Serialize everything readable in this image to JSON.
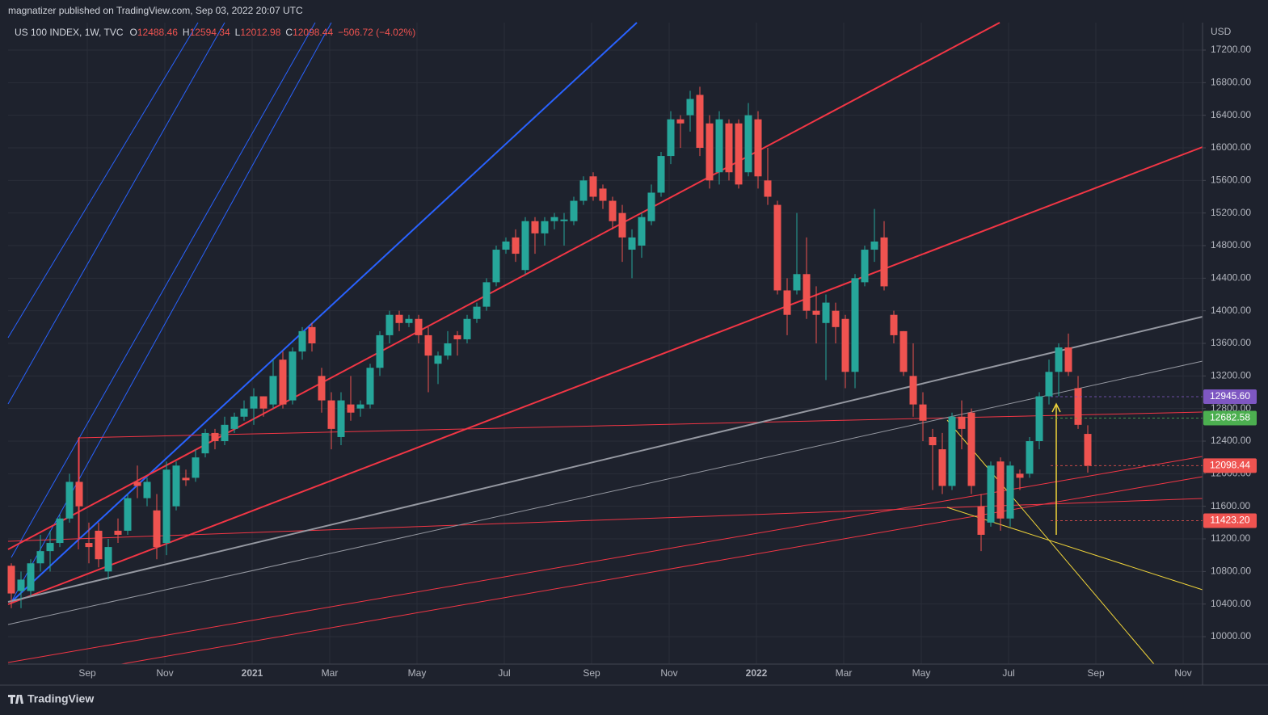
{
  "header": "magnatizer published on TradingView.com, Sep 03, 2022 20:07 UTC",
  "footer": "TradingView",
  "chart_data": {
    "type": "candlestick",
    "title": "US 100 INDEX, 1W, TVC",
    "ohlc_legend": [
      {
        "label": "O",
        "value": 12488.46
      },
      {
        "label": "H",
        "value": 12594.34
      },
      {
        "label": "L",
        "value": 12012.98
      },
      {
        "label": "C",
        "value": 12098.44
      }
    ],
    "change": "−506.72 (−4.02%)",
    "y_axis_label": "USD",
    "up_color": "#26a69a",
    "down_color": "#ef5350",
    "categories": [
      null,
      null,
      null,
      null,
      null,
      null,
      null,
      null,
      "Sep",
      null,
      null,
      null,
      null,
      null,
      null,
      null,
      "Nov",
      null,
      null,
      null,
      null,
      null,
      null,
      null,
      null,
      "2021",
      null,
      null,
      null,
      null,
      null,
      null,
      null,
      "Mar",
      null,
      null,
      null,
      null,
      null,
      null,
      null,
      null,
      "May",
      null,
      null,
      null,
      null,
      null,
      null,
      null,
      null,
      "Jul",
      null,
      null,
      null,
      null,
      null,
      null,
      null,
      null,
      "Sep",
      null,
      null,
      null,
      null,
      null,
      null,
      null,
      "Nov",
      null,
      null,
      null,
      null,
      null,
      null,
      null,
      null,
      "2022",
      null,
      null,
      null,
      null,
      null,
      null,
      null,
      null,
      "Mar",
      null,
      null,
      null,
      null,
      null,
      null,
      null,
      "May",
      null,
      null,
      null,
      null,
      null,
      null,
      null,
      null,
      "Jul",
      null,
      null,
      null,
      null,
      null,
      null,
      null,
      null,
      "Sep",
      null,
      null,
      null,
      null,
      null,
      null,
      null,
      null,
      "Nov"
    ],
    "open": [
      10870,
      10560,
      10560,
      10900,
      11050,
      11150,
      11450,
      11900,
      11150,
      11300,
      10800,
      11300,
      11300,
      11900,
      11700,
      11550,
      11150,
      11600,
      11950,
      11950,
      12250,
      12500,
      12400,
      12550,
      12700,
      12800,
      12950,
      12850,
      13400,
      12900,
      13500,
      13800,
      13200,
      12900,
      12450,
      12850,
      12800,
      12850,
      13300,
      13700,
      13950,
      13850,
      13900,
      13700,
      13350,
      13450,
      13700,
      13650,
      13900,
      14050,
      14350,
      14750,
      14900,
      14500,
      15100,
      14950,
      15100,
      15100,
      15100,
      15350,
      15650,
      15500,
      15350,
      15200,
      14750,
      14800,
      15100,
      15450,
      15900,
      16350,
      16400,
      16650,
      16300,
      15700,
      16300,
      16300,
      15700,
      16350,
      15600,
      15300,
      14250,
      14250,
      14450,
      14000,
      13850,
      14000,
      13900,
      13250,
      14350,
      14750,
      14900,
      13950,
      13750,
      13200,
      12850,
      12450,
      12300,
      11850,
      12700,
      12750,
      11600,
      11400,
      12150,
      11450,
      12000,
      12000,
      12400,
      12950,
      13250,
      13550,
      13050,
      12488.46,
      null,
      null,
      null,
      null,
      null,
      null,
      null,
      null,
      null,
      null
    ],
    "high": [
      10900,
      10800,
      10950,
      11250,
      11300,
      11500,
      12000,
      12450,
      11400,
      11400,
      11200,
      11450,
      11750,
      12100,
      11950,
      11750,
      12150,
      12150,
      12050,
      12300,
      12550,
      12550,
      12700,
      12750,
      12900,
      13050,
      12950,
      13400,
      13500,
      13550,
      13800,
      13850,
      13300,
      13000,
      13000,
      13200,
      12900,
      13350,
      13750,
      14000,
      14000,
      13950,
      13950,
      13800,
      13500,
      13750,
      13750,
      13950,
      14100,
      14400,
      14800,
      14900,
      15000,
      15150,
      15150,
      15150,
      15200,
      15200,
      15400,
      15650,
      15700,
      15550,
      15400,
      15300,
      15000,
      15200,
      15550,
      15950,
      16450,
      16400,
      16700,
      16750,
      16400,
      16450,
      16350,
      16350,
      16550,
      16450,
      16000,
      15350,
      14400,
      15200,
      14900,
      14300,
      14200,
      14100,
      13950,
      14450,
      14800,
      15250,
      15100,
      14000,
      13750,
      13600,
      13000,
      12550,
      12500,
      12750,
      12900,
      12800,
      11750,
      12150,
      12200,
      12150,
      12050,
      12450,
      13000,
      13400,
      13600,
      13720,
      13200,
      12594.34,
      null,
      null,
      null,
      null,
      null,
      null,
      null,
      null,
      null,
      null
    ],
    "low": [
      10350,
      10350,
      10500,
      10800,
      10800,
      11100,
      11400,
      11200,
      10900,
      10850,
      10700,
      11150,
      11250,
      11700,
      11600,
      10950,
      11000,
      11550,
      11850,
      11900,
      12200,
      12300,
      12350,
      12500,
      12650,
      12600,
      12700,
      12800,
      12800,
      12850,
      13400,
      13500,
      12750,
      12300,
      12350,
      12650,
      12700,
      12800,
      13200,
      13600,
      13750,
      13800,
      13600,
      13000,
      13100,
      13400,
      13450,
      13600,
      13850,
      14000,
      14300,
      14700,
      14600,
      14450,
      14700,
      14800,
      15000,
      14800,
      15050,
      15300,
      15350,
      15250,
      15000,
      14600,
      14400,
      14650,
      15050,
      15400,
      15800,
      16000,
      16200,
      15900,
      15500,
      15550,
      15600,
      15500,
      15650,
      15500,
      15300,
      14200,
      13700,
      14200,
      13900,
      13600,
      13150,
      13600,
      13050,
      13050,
      14300,
      14600,
      14250,
      13600,
      13200,
      12700,
      12400,
      11800,
      11750,
      11800,
      12300,
      11750,
      11050,
      11350,
      11300,
      11350,
      11800,
      11950,
      12300,
      12850,
      12950,
      13200,
      12550,
      12012.98,
      null,
      null,
      null,
      null,
      null,
      null,
      null,
      null,
      null,
      null
    ],
    "close": [
      10530,
      10700,
      10900,
      11050,
      11150,
      11450,
      11900,
      11600,
      11100,
      10950,
      11100,
      11250,
      11700,
      11850,
      11900,
      11100,
      12050,
      12100,
      11920,
      12200,
      12500,
      12400,
      12600,
      12700,
      12800,
      12950,
      12800,
      13200,
      12850,
      13500,
      13750,
      13600,
      12900,
      12550,
      12900,
      12750,
      12850,
      13300,
      13700,
      13950,
      13850,
      13900,
      13700,
      13450,
      13450,
      13600,
      13650,
      13900,
      14050,
      14350,
      14750,
      14850,
      14700,
      15100,
      14950,
      15100,
      15150,
      15120,
      15350,
      15600,
      15400,
      15350,
      15100,
      14900,
      14900,
      15150,
      15450,
      15900,
      16350,
      16300,
      16600,
      16000,
      15600,
      16350,
      15700,
      15550,
      16400,
      15650,
      15400,
      14250,
      13950,
      14450,
      14000,
      13950,
      14100,
      13800,
      13250,
      14400,
      14750,
      14850,
      14300,
      13700,
      13250,
      12850,
      12650,
      12350,
      11850,
      12700,
      12550,
      11850,
      11250,
      12100,
      11450,
      12100,
      11950,
      12400,
      12950,
      13250,
      13550,
      13250,
      12600,
      12098.44,
      null,
      null,
      null,
      null,
      null,
      null,
      null,
      null,
      null,
      null
    ],
    "ylim": [
      9663,
      17537
    ],
    "yticks": [
      {
        "value": 10000,
        "label": "10000.00"
      },
      {
        "value": 10400,
        "label": "10400.00"
      },
      {
        "value": 10800,
        "label": "10800.00"
      },
      {
        "value": 11200,
        "label": "11200.00"
      },
      {
        "value": 11600,
        "label": "11600.00"
      },
      {
        "value": 12000,
        "label": "12000.00"
      },
      {
        "value": 12400,
        "label": "12400.00"
      },
      {
        "value": 12800,
        "label": "12800.00"
      },
      {
        "value": 13200,
        "label": "13200.00"
      },
      {
        "value": 13600,
        "label": "13600.00"
      },
      {
        "value": 14000,
        "label": "14000.00"
      },
      {
        "value": 14400,
        "label": "14400.00"
      },
      {
        "value": 14800,
        "label": "14800.00"
      },
      {
        "value": 15200,
        "label": "15200.00"
      },
      {
        "value": 15600,
        "label": "15600.00"
      },
      {
        "value": 16000,
        "label": "16000.00"
      },
      {
        "value": 16400,
        "label": "16400.00"
      },
      {
        "value": 16800,
        "label": "16800.00"
      },
      {
        "value": 17200,
        "label": "17200.00"
      }
    ],
    "price_markers": [
      {
        "value": 12945.6,
        "label": "12945.60",
        "color": "#7e57c2"
      },
      {
        "value": 12682.58,
        "label": "12682.58",
        "color": "#4caf50"
      },
      {
        "value": 12098.44,
        "label": "12098.44",
        "color": "#ef5350"
      },
      {
        "value": 11423.2,
        "label": "11423.20",
        "color": "#ef5350"
      }
    ],
    "grid": true
  }
}
